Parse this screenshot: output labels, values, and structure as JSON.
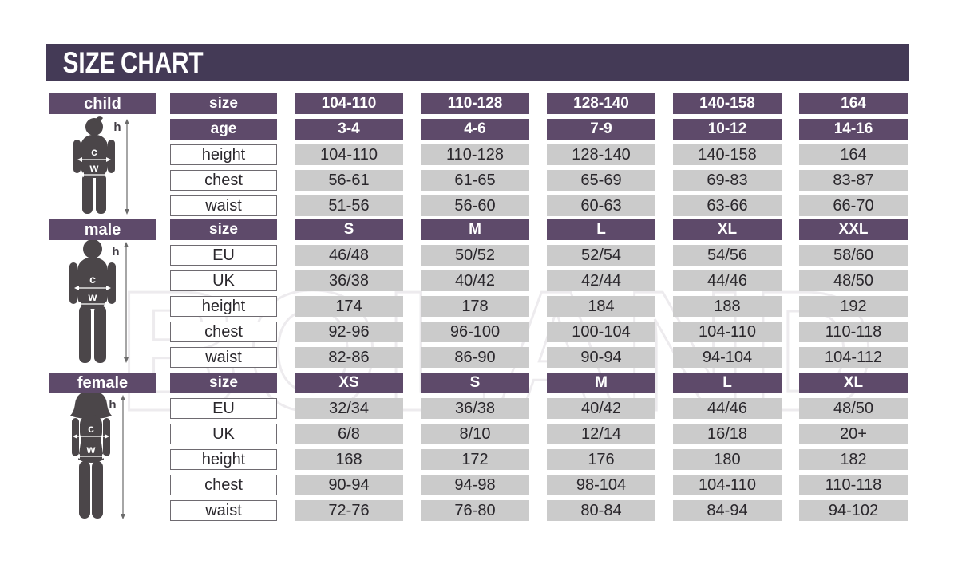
{
  "title": "SIZE CHART",
  "watermark_text": "BOLAND",
  "figure_labels": {
    "height": "h",
    "chest": "c",
    "waist": "w"
  },
  "colors": {
    "title_bar": "#443a56",
    "row_header": "#5e4a6a",
    "data_cell": "#cbcbcb",
    "silhouette": "#4b4649"
  },
  "chart_data": [
    {
      "type": "table",
      "section": "child",
      "rows": [
        {
          "label": "size",
          "kind": "header",
          "values": [
            "104-110",
            "110-128",
            "128-140",
            "140-158",
            "164"
          ]
        },
        {
          "label": "age",
          "kind": "header",
          "values": [
            "3-4",
            "4-6",
            "7-9",
            "10-12",
            "14-16"
          ]
        },
        {
          "label": "height",
          "kind": "data",
          "values": [
            "104-110",
            "110-128",
            "128-140",
            "140-158",
            "164"
          ]
        },
        {
          "label": "chest",
          "kind": "data",
          "values": [
            "56-61",
            "61-65",
            "65-69",
            "69-83",
            "83-87"
          ]
        },
        {
          "label": "waist",
          "kind": "data",
          "values": [
            "51-56",
            "56-60",
            "60-63",
            "63-66",
            "66-70"
          ]
        }
      ]
    },
    {
      "type": "table",
      "section": "male",
      "rows": [
        {
          "label": "size",
          "kind": "header",
          "values": [
            "S",
            "M",
            "L",
            "XL",
            "XXL"
          ]
        },
        {
          "label": "EU",
          "kind": "data",
          "values": [
            "46/48",
            "50/52",
            "52/54",
            "54/56",
            "58/60"
          ]
        },
        {
          "label": "UK",
          "kind": "data",
          "values": [
            "36/38",
            "40/42",
            "42/44",
            "44/46",
            "48/50"
          ]
        },
        {
          "label": "height",
          "kind": "data",
          "values": [
            "174",
            "178",
            "184",
            "188",
            "192"
          ]
        },
        {
          "label": "chest",
          "kind": "data",
          "values": [
            "92-96",
            "96-100",
            "100-104",
            "104-110",
            "110-118"
          ]
        },
        {
          "label": "waist",
          "kind": "data",
          "values": [
            "82-86",
            "86-90",
            "90-94",
            "94-104",
            "104-112"
          ]
        }
      ]
    },
    {
      "type": "table",
      "section": "female",
      "rows": [
        {
          "label": "size",
          "kind": "header",
          "values": [
            "XS",
            "S",
            "M",
            "L",
            "XL"
          ]
        },
        {
          "label": "EU",
          "kind": "data",
          "values": [
            "32/34",
            "36/38",
            "40/42",
            "44/46",
            "48/50"
          ]
        },
        {
          "label": "UK",
          "kind": "data",
          "values": [
            "6/8",
            "8/10",
            "12/14",
            "16/18",
            "20+"
          ]
        },
        {
          "label": "height",
          "kind": "data",
          "values": [
            "168",
            "172",
            "176",
            "180",
            "182"
          ]
        },
        {
          "label": "chest",
          "kind": "data",
          "values": [
            "90-94",
            "94-98",
            "98-104",
            "104-110",
            "110-118"
          ]
        },
        {
          "label": "waist",
          "kind": "data",
          "values": [
            "72-76",
            "76-80",
            "80-84",
            "84-94",
            "94-102"
          ]
        }
      ]
    }
  ]
}
